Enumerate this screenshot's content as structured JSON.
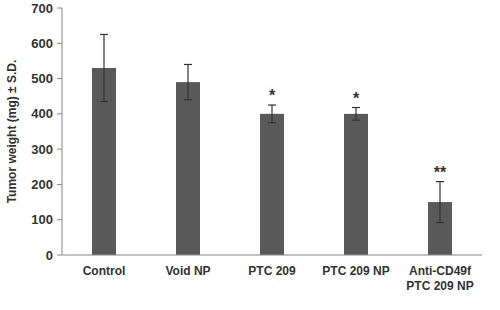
{
  "chart_data": {
    "type": "bar",
    "y_label": "Tumor weight (mg) ± S.D.",
    "categories": [
      "Control",
      "Void NP",
      "PTC 209",
      "PTC 209 NP",
      "Anti-CD49f\nPTC 209 NP"
    ],
    "values": [
      530,
      490,
      400,
      400,
      150
    ],
    "errors": [
      95,
      50,
      25,
      18,
      58
    ],
    "color": "#595959",
    "ylim": [
      0,
      700
    ],
    "yticks": [
      0,
      100,
      200,
      300,
      400,
      500,
      600,
      700
    ],
    "grid": false,
    "annotations": [
      {
        "category": "PTC 209",
        "text": "*"
      },
      {
        "category": "PTC 209 NP",
        "text": "*"
      },
      {
        "category": "Anti-CD49f\nPTC 209 NP",
        "text": "**"
      }
    ]
  }
}
